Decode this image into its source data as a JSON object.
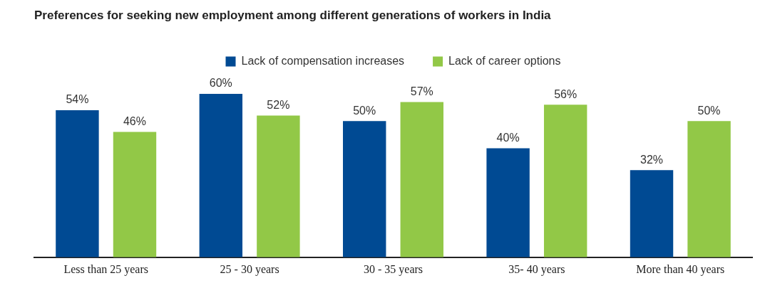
{
  "chart_data": {
    "type": "bar",
    "title": "Preferences for seeking new employment among different generations of workers in India",
    "categories": [
      "Less than 25 years",
      "25 - 30 years",
      "30 - 35 years",
      "35- 40 years",
      "More than 40 years"
    ],
    "series": [
      {
        "name": "Lack of compensation increases",
        "color": "#004a93",
        "values": [
          54,
          60,
          50,
          40,
          32
        ],
        "value_labels": [
          "54%",
          "60%",
          "50%",
          "40%",
          "32%"
        ]
      },
      {
        "name": "Lack of career options",
        "color": "#92c847",
        "values": [
          46,
          52,
          57,
          56,
          50
        ],
        "value_labels": [
          "46%",
          "52%",
          "57%",
          "56%",
          "50%"
        ]
      }
    ],
    "legend": "top",
    "grid": false
  }
}
